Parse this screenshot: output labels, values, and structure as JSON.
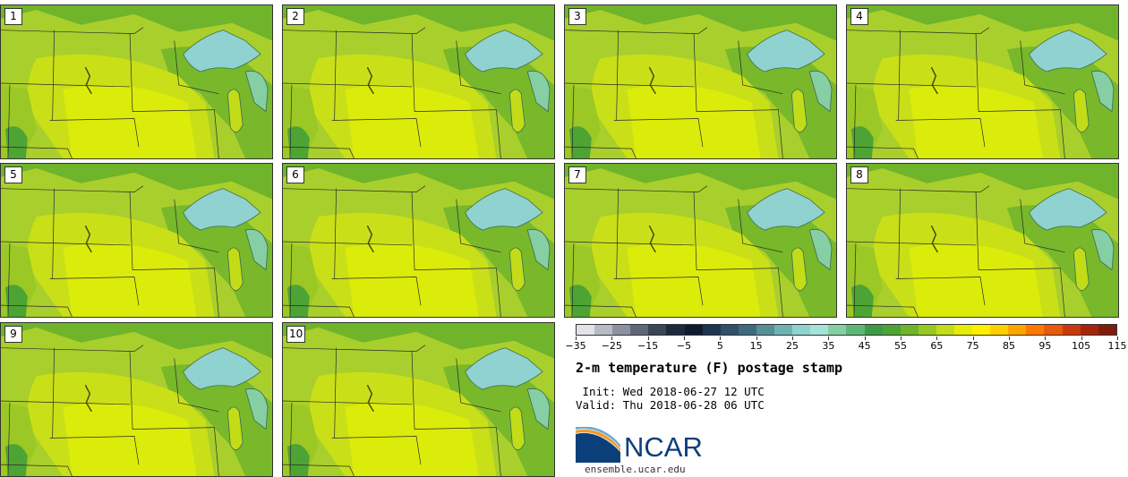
{
  "panels": [
    {
      "label": "1"
    },
    {
      "label": "2"
    },
    {
      "label": "3"
    },
    {
      "label": "4"
    },
    {
      "label": "5"
    },
    {
      "label": "6"
    },
    {
      "label": "7"
    },
    {
      "label": "8"
    },
    {
      "label": "9"
    },
    {
      "label": "10"
    }
  ],
  "colorbar": {
    "colors": [
      "#e2e3ea",
      "#b7bbc5",
      "#8c92a0",
      "#5f6878",
      "#3a4556",
      "#1d2a3d",
      "#0e1b2e",
      "#1c3550",
      "#2f5068",
      "#3f6a80",
      "#569097",
      "#6fb2b2",
      "#8fd2cf",
      "#a6e2d8",
      "#86cfa5",
      "#5fb679",
      "#3d9b48",
      "#4da434",
      "#6fb42a",
      "#98c823",
      "#c2dc18",
      "#e4ec08",
      "#fff000",
      "#ffd000",
      "#ffa500",
      "#ff7800",
      "#e85a0c",
      "#c83a0e",
      "#a4250c",
      "#7f1d0c"
    ],
    "tick_labels": [
      "−35",
      "−25",
      "−15",
      "−5",
      "5",
      "15",
      "25",
      "35",
      "45",
      "55",
      "65",
      "75",
      "85",
      "95",
      "105",
      "115"
    ]
  },
  "title": "2-m temperature (F) postage stamp",
  "init_text": " Init: Wed 2018-06-27 12 UTC",
  "valid_text": "Valid: Thu 2018-06-28 06 UTC",
  "logo": {
    "text": "NCAR",
    "site": "ensemble.ucar.edu",
    "color": "#0b3f7a"
  }
}
